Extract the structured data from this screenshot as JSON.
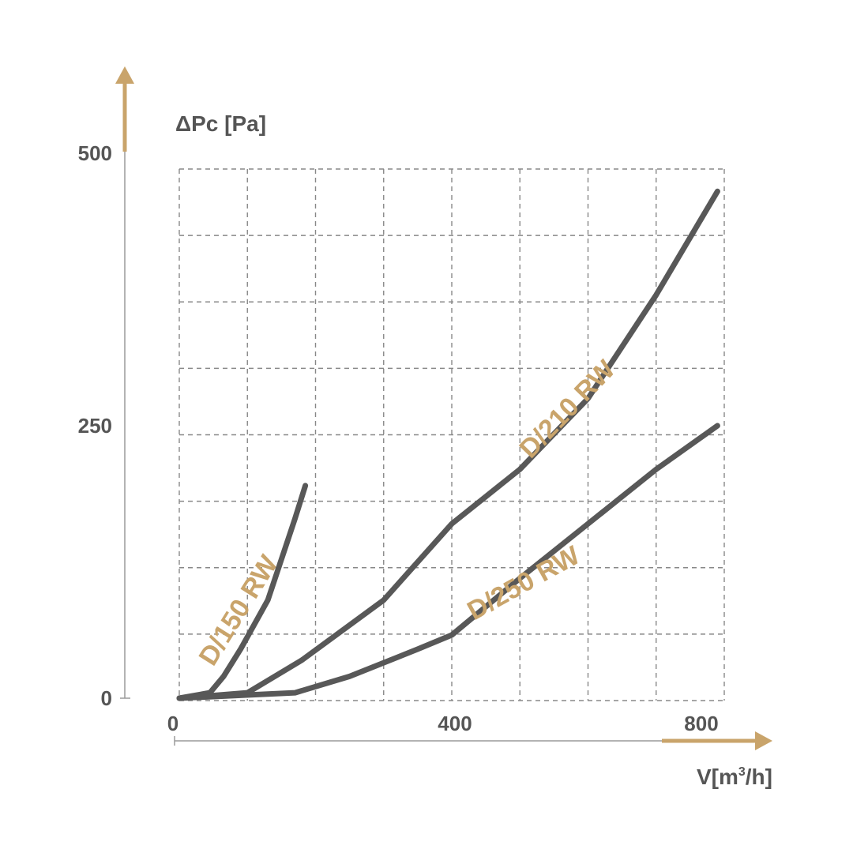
{
  "chart_data": {
    "type": "line",
    "title": "",
    "xlabel": {
      "main": "V[m",
      "sup": "3",
      "end": "/h]"
    },
    "ylabel": "ΔPc [Pa]",
    "xlim": [
      0,
      800
    ],
    "ylim": [
      0,
      400
    ],
    "x_ticks": [
      {
        "value": 0,
        "label": "0"
      },
      {
        "value": 400,
        "label": "400"
      },
      {
        "value": 800,
        "label": "800"
      }
    ],
    "y_ticks": [
      {
        "value": 0,
        "label": "0"
      },
      {
        "value": 250,
        "label": "250"
      },
      {
        "value": 500,
        "label": "500"
      }
    ],
    "grid": true,
    "colors": {
      "axis": "#c9a46b",
      "line": "#585858",
      "grid": "#888888",
      "text": "#555555",
      "label": "#c9a46b"
    },
    "series": [
      {
        "name": "D/150 RW",
        "points": [
          [
            0,
            0
          ],
          [
            45,
            5
          ],
          [
            65,
            20
          ],
          [
            90,
            45
          ],
          [
            130,
            90
          ],
          [
            170,
            165
          ],
          [
            185,
            195
          ]
        ]
      },
      {
        "name": "D/210 RW",
        "points": [
          [
            0,
            0
          ],
          [
            100,
            5
          ],
          [
            180,
            35
          ],
          [
            300,
            90
          ],
          [
            400,
            160
          ],
          [
            500,
            210
          ],
          [
            600,
            275
          ],
          [
            700,
            370
          ],
          [
            790,
            465
          ]
        ]
      },
      {
        "name": "D/250 RW",
        "points": [
          [
            0,
            0
          ],
          [
            170,
            5
          ],
          [
            250,
            20
          ],
          [
            350,
            45
          ],
          [
            400,
            58
          ],
          [
            500,
            110
          ],
          [
            600,
            160
          ],
          [
            700,
            210
          ],
          [
            790,
            250
          ]
        ]
      }
    ]
  }
}
